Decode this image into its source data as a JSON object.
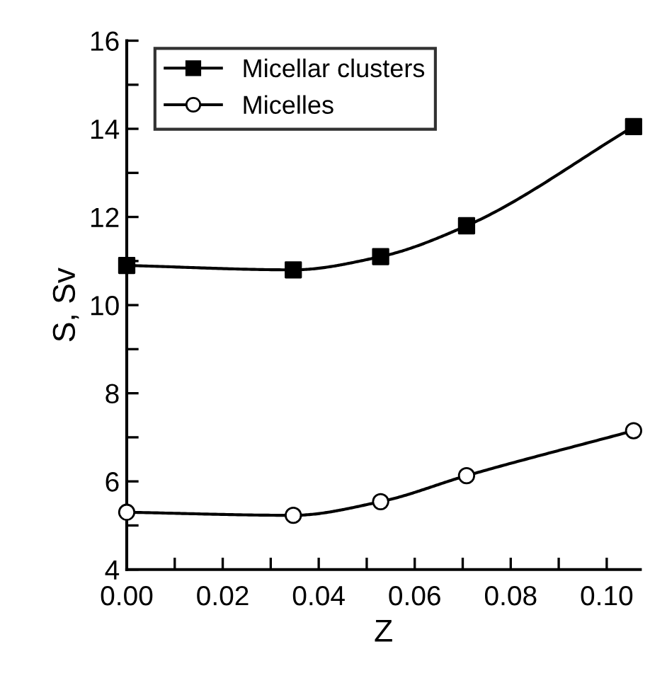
{
  "chart_data": {
    "type": "line",
    "xlabel": "Z",
    "ylabel": "S, Sv",
    "series": [
      {
        "name": "Micellar clusters",
        "color": "#000000",
        "marker": "square",
        "x": [
          0.0,
          0.0347,
          0.0529,
          0.0708,
          0.1056
        ],
        "values": [
          10.9,
          10.8,
          11.1,
          11.8,
          14.05
        ]
      },
      {
        "name": "Micelles",
        "color": "#000000",
        "marker": "circle",
        "x": [
          0.0,
          0.0347,
          0.0529,
          0.0708,
          0.1056
        ],
        "values": [
          5.3,
          5.23,
          5.54,
          6.13,
          7.15
        ]
      }
    ],
    "xlim": [
      0.0,
      0.107
    ],
    "ylim": [
      4,
      16
    ],
    "xticks": [
      {
        "value": 0.0,
        "label": "0.00"
      },
      {
        "value": 0.01,
        "label": null
      },
      {
        "value": 0.02,
        "label": "0.02"
      },
      {
        "value": 0.03,
        "label": null
      },
      {
        "value": 0.04,
        "label": "0.04"
      },
      {
        "value": 0.05,
        "label": null
      },
      {
        "value": 0.06,
        "label": "0.06"
      },
      {
        "value": 0.07,
        "label": null
      },
      {
        "value": 0.08,
        "label": "0.08"
      },
      {
        "value": 0.09,
        "label": null
      },
      {
        "value": 0.1,
        "label": "0.10"
      }
    ],
    "yticks": [
      4,
      {
        "value": 5,
        "label": null
      },
      6,
      {
        "value": 7,
        "label": null
      },
      8,
      {
        "value": 9,
        "label": null
      },
      10,
      {
        "value": 11,
        "label": null
      },
      12,
      {
        "value": 13,
        "label": null
      },
      14,
      {
        "value": 15,
        "label": null
      },
      16
    ],
    "grid": false,
    "legend": "top left",
    "line_style": "solid"
  }
}
